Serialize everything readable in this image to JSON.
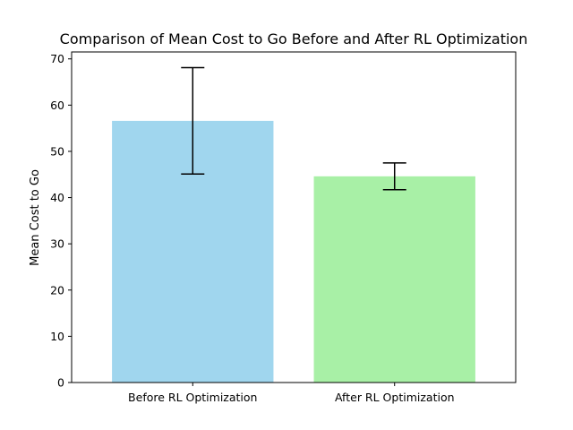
{
  "chart_data": {
    "type": "bar",
    "title": "Comparison of Mean Cost to Go Before and After RL Optimization",
    "xlabel": "",
    "ylabel": "Mean Cost to Go",
    "categories": [
      "Before RL Optimization",
      "After RL Optimization"
    ],
    "values": [
      56.6,
      44.6
    ],
    "error": [
      11.5,
      2.9
    ],
    "colors": [
      "#a0d6ee",
      "#a8f0a6"
    ],
    "ylim": [
      0,
      71.5
    ],
    "yticks": [
      0,
      10,
      20,
      30,
      40,
      50,
      60,
      70
    ],
    "grid": false,
    "legend": "none"
  }
}
